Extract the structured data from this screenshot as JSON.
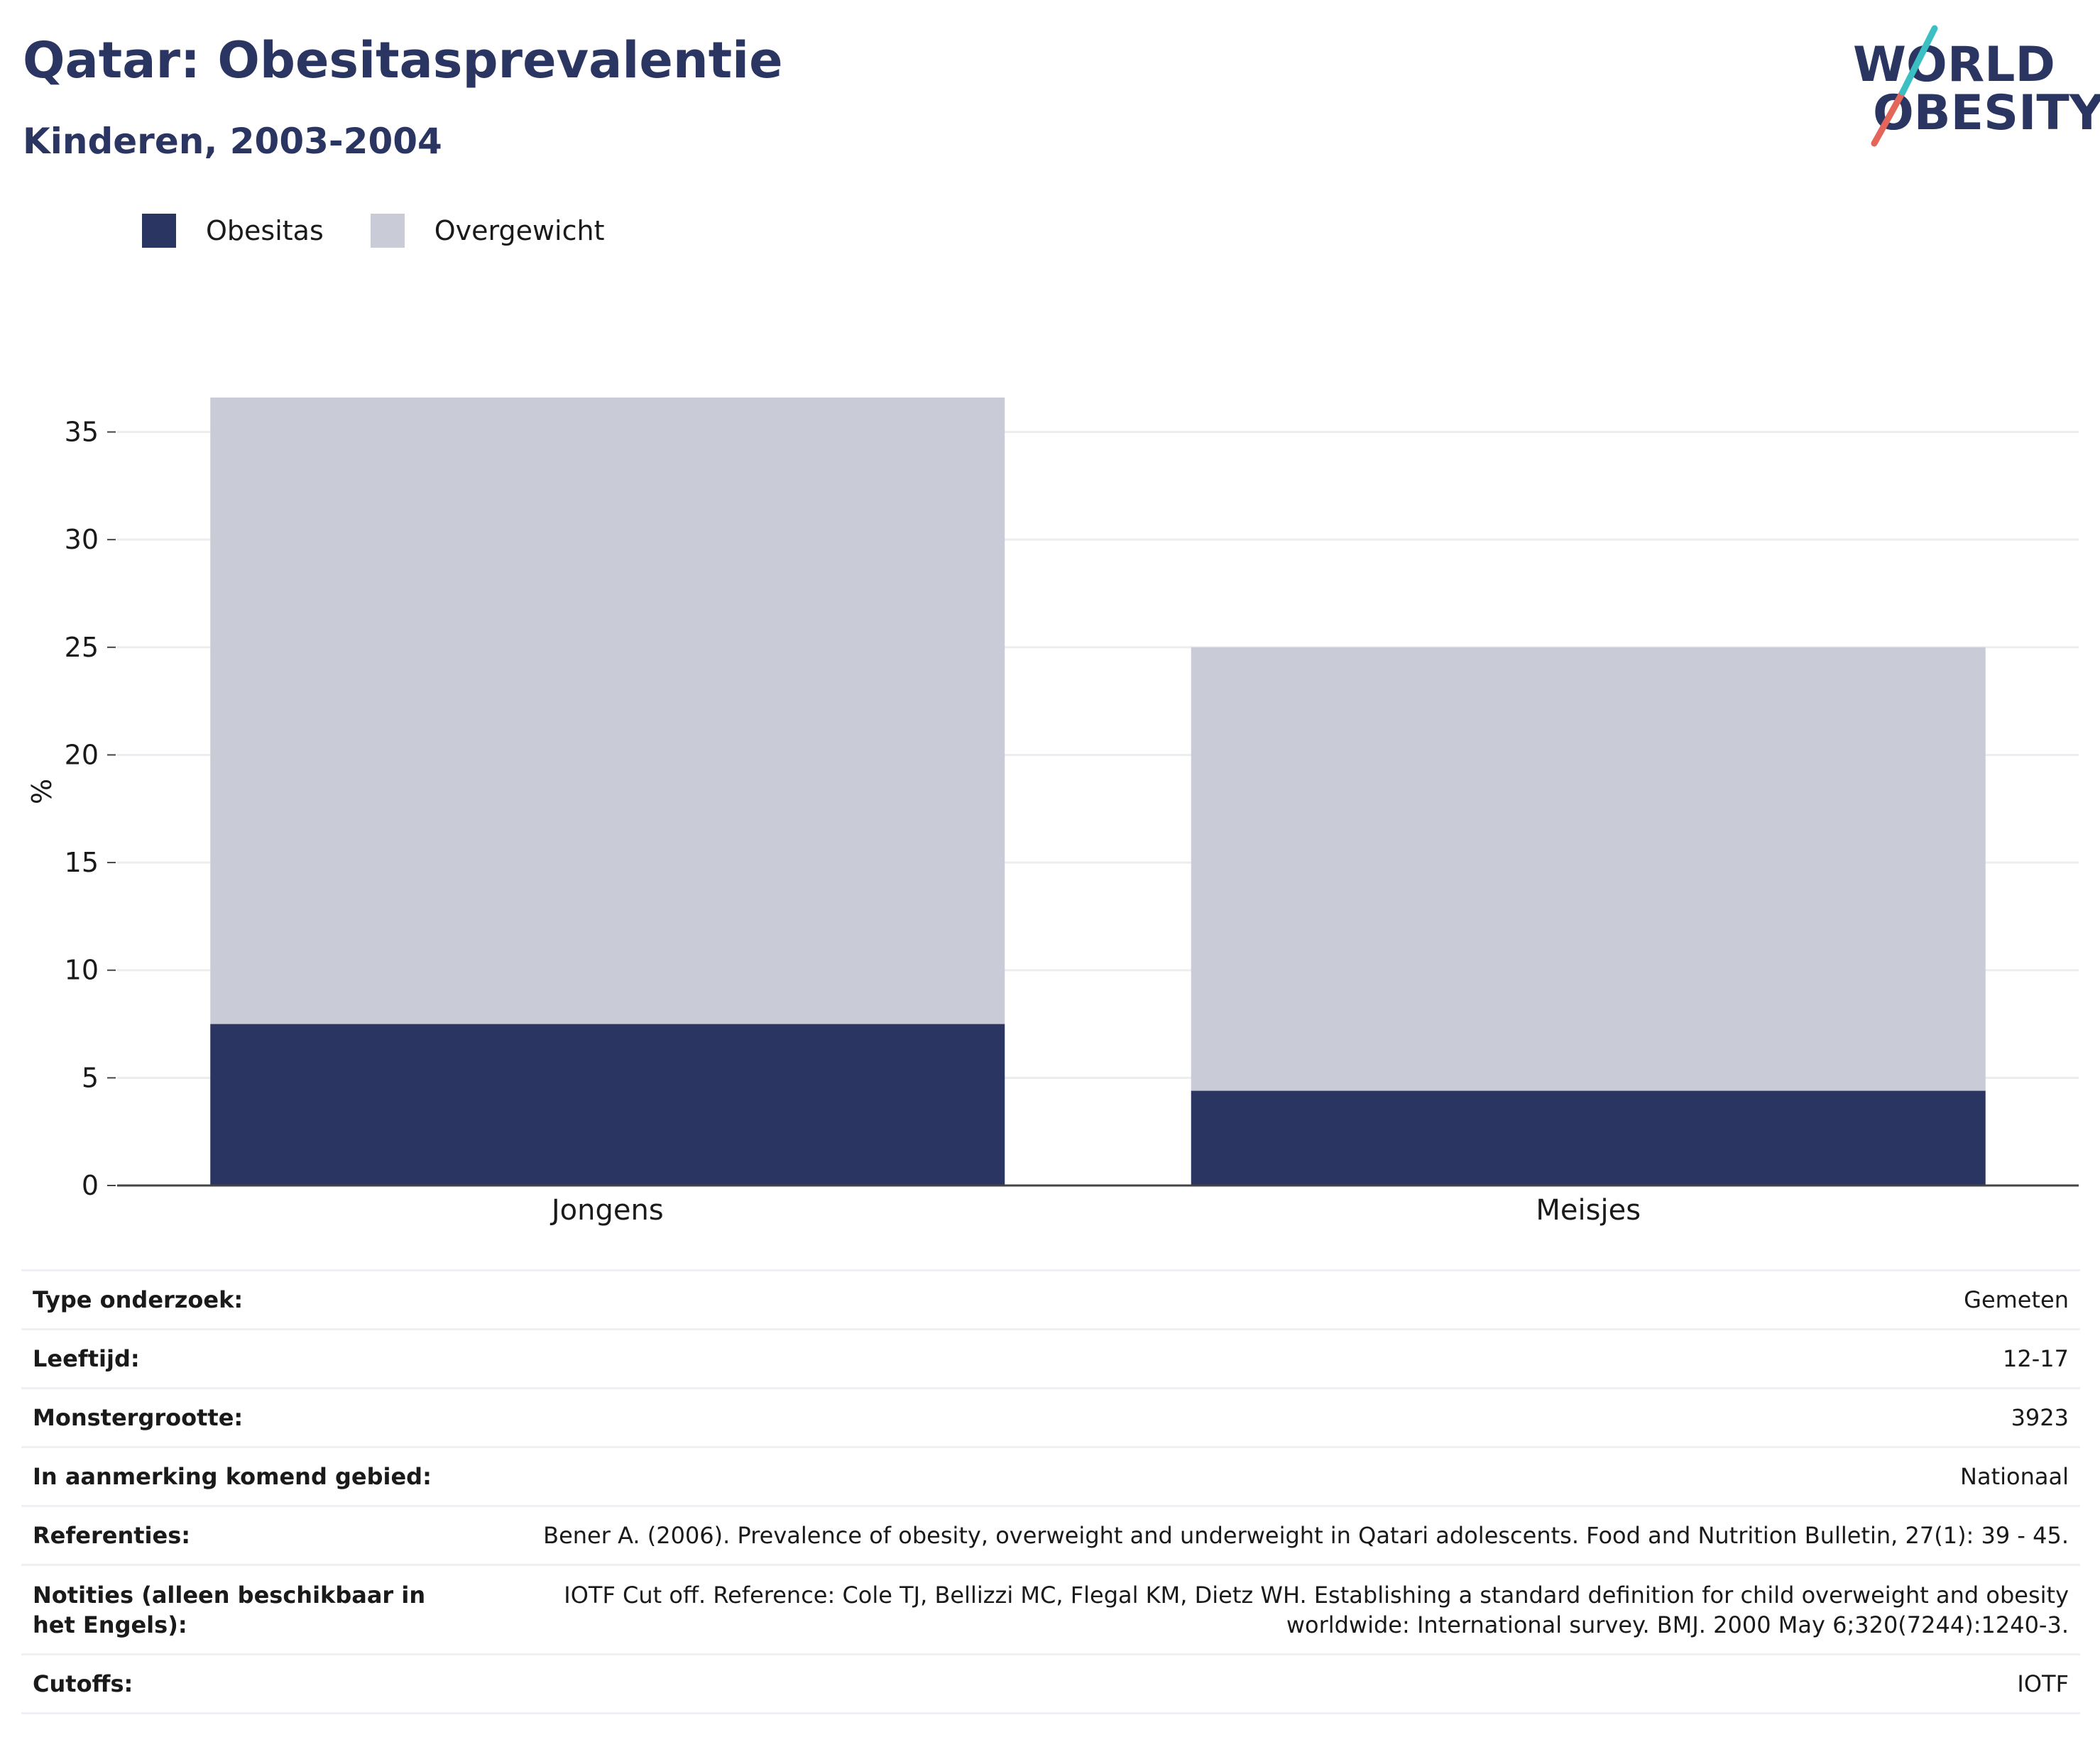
{
  "header": {
    "title": "Qatar: Obesitasprevalentie",
    "subtitle": "Kinderen, 2003-2004"
  },
  "logo": {
    "line1": "WORLD",
    "line2": "OBESITY",
    "text_color": "#2a3562",
    "slash_colors": [
      "#e4665a",
      "#3bbfc3"
    ]
  },
  "legend": {
    "items": [
      {
        "label": "Obesitas",
        "color": "#2a3562"
      },
      {
        "label": "Overgewicht",
        "color": "#c9cbd7"
      }
    ]
  },
  "chart_data": {
    "type": "bar",
    "stacked": true,
    "categories": [
      "Jongens",
      "Meisjes"
    ],
    "series": [
      {
        "name": "Obesitas",
        "color": "#2a3562",
        "values": [
          7.5,
          4.4
        ]
      },
      {
        "name": "Overgewicht",
        "color": "#c9cbd7",
        "values": [
          29.1,
          20.6
        ]
      }
    ],
    "ylabel": "%",
    "xlabel": "",
    "ylim": [
      0,
      36.6
    ],
    "yticks": [
      0,
      5,
      10,
      15,
      20,
      25,
      30,
      35
    ],
    "grid": true,
    "legend_position": "top-left"
  },
  "info_table": {
    "rows": [
      {
        "label": "Type onderzoek:",
        "value": "Gemeten"
      },
      {
        "label": "Leeftijd:",
        "value": "12-17"
      },
      {
        "label": "Monstergrootte:",
        "value": "3923"
      },
      {
        "label": "In aanmerking komend gebied:",
        "value": "Nationaal"
      },
      {
        "label": "Referenties:",
        "value": "Bener A. (2006). Prevalence of obesity, overweight and underweight in Qatari adolescents. Food and Nutrition Bulletin, 27(1): 39 - 45."
      },
      {
        "label": "Notities (alleen beschikbaar in het Engels):",
        "value": "IOTF Cut off. Reference: Cole TJ, Bellizzi MC, Flegal KM, Dietz WH. Establishing a standard definition for child overweight and obesity worldwide: International survey. BMJ. 2000 May 6;320(7244):1240-3."
      },
      {
        "label": "Cutoffs:",
        "value": "IOTF"
      }
    ]
  }
}
